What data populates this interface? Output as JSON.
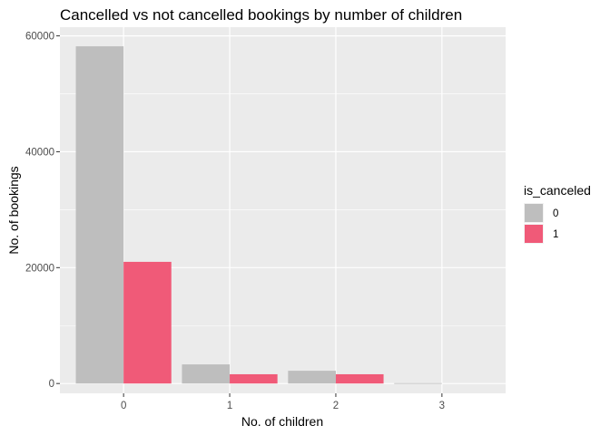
{
  "chart_data": {
    "type": "bar",
    "title": "Cancelled vs not cancelled bookings by number of children",
    "xlabel": "No. of children",
    "ylabel": "No. of bookings",
    "categories": [
      "0",
      "1",
      "2",
      "3"
    ],
    "series": [
      {
        "name": "0",
        "values": [
          58200,
          3300,
          2200,
          70
        ]
      },
      {
        "name": "1",
        "values": [
          21000,
          1600,
          1600,
          0
        ]
      }
    ],
    "ylim": [
      0,
      61500
    ],
    "yticks": [
      0,
      20000,
      40000,
      60000
    ],
    "ytick_labels": [
      "0",
      "20000",
      "40000",
      "60000"
    ],
    "grid": true,
    "legend": {
      "title": "is_canceled",
      "position": "right"
    },
    "colors": {
      "0": "#bebebe",
      "1": "#f05a78",
      "panel": "#ebebeb",
      "grid": "#ffffff"
    }
  }
}
